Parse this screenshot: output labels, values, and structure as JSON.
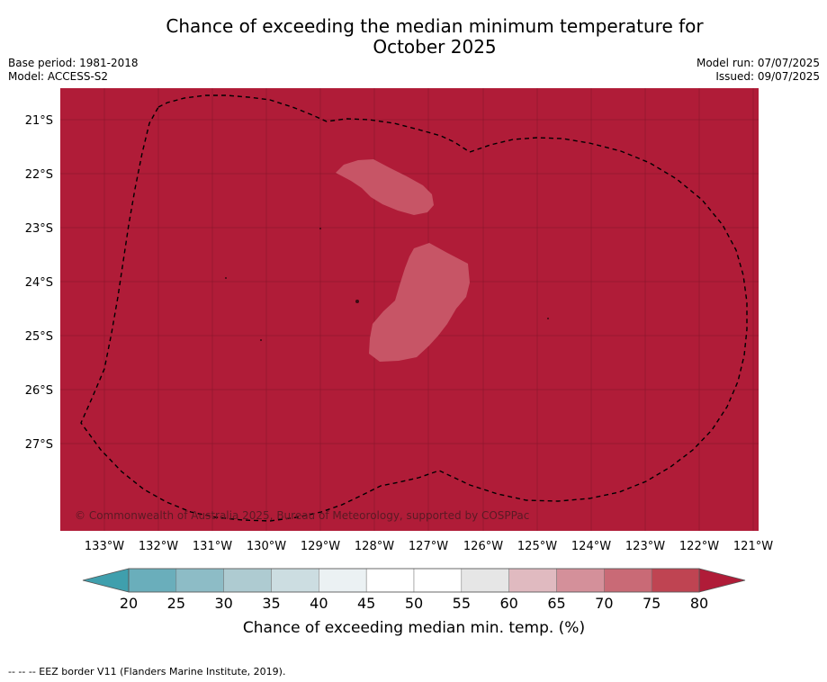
{
  "title_line1": "Chance of exceeding the median minimum temperature for",
  "title_line2": "October 2025",
  "base_period": "Base period: 1981-2018",
  "model": "Model: ACCESS-S2",
  "model_run": "Model run: 07/07/2025",
  "issued": "Issued: 09/07/2025",
  "copyright": "© Commonwealth of Australia 2025, Bureau of Meteorology, supported by COSPPac",
  "footer": "-- -- -- EEZ border V11 (Flanders Marine Institute, 2019).",
  "map": {
    "lat_labels": [
      "21°S",
      "22°S",
      "23°S",
      "24°S",
      "25°S",
      "26°S",
      "27°S"
    ],
    "lon_labels": [
      "133°W",
      "132°W",
      "131°W",
      "130°W",
      "129°W",
      "128°W",
      "127°W",
      "126°W",
      "125°W",
      "124°W",
      "123°W",
      "122°W",
      "121°W"
    ],
    "fill_color": "#b01c38",
    "patch_color": "#c75566"
  },
  "colorbar": {
    "ticks": [
      "20",
      "25",
      "30",
      "35",
      "40",
      "45",
      "50",
      "55",
      "60",
      "65",
      "70",
      "75",
      "80"
    ],
    "colors": [
      "#6aaebb",
      "#8dbcc6",
      "#aecbd1",
      "#ccdde1",
      "#ebf1f3",
      "#ffffff",
      "#ffffff",
      "#e6e6e6",
      "#e0bac0",
      "#d4909a",
      "#c96a76",
      "#bf4452"
    ],
    "under_color": "#3f9fad",
    "over_color": "#b01c38",
    "label": "Chance of exceeding median min. temp. (%)"
  }
}
